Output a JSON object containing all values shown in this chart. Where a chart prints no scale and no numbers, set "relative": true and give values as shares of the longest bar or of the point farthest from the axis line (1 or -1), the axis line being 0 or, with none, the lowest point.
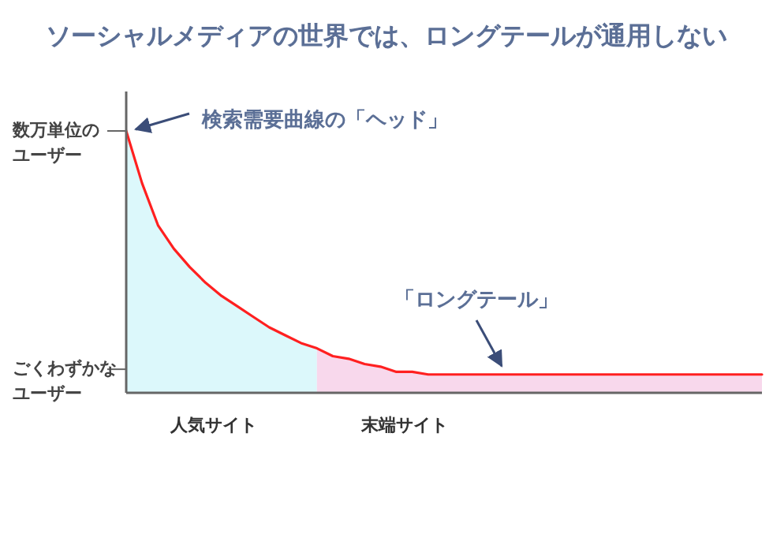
{
  "chart_data": {
    "type": "line",
    "title": "ソーシャルメディアの世界では、ロングテールが通用しない",
    "relative": true,
    "categories": [
      null,
      null,
      null,
      null,
      null,
      null,
      null,
      null,
      null,
      null,
      null,
      null,
      null,
      null,
      null,
      null,
      null,
      null,
      null,
      null,
      null,
      null,
      null,
      null,
      null,
      null,
      null,
      null,
      null,
      null,
      null,
      null,
      null,
      null,
      null,
      null,
      null,
      null,
      null,
      null,
      null
    ],
    "series": [
      {
        "type": "area",
        "name": "人気サイト",
        "color": "#dcf8fb",
        "values": [
          1,
          0.8,
          0.64,
          0.55,
          0.48,
          0.42,
          0.37,
          0.33,
          0.29,
          0.25,
          0.22,
          0.19,
          0.17,
          null,
          null,
          null,
          null,
          null,
          null,
          null,
          null,
          null,
          null,
          null,
          null,
          null,
          null,
          null,
          null,
          null,
          null,
          null,
          null,
          null,
          null,
          null,
          null,
          null,
          null,
          null,
          null
        ]
      },
      {
        "type": "area",
        "name": "末端サイト",
        "color": "#f8d8ec",
        "values": [
          null,
          null,
          null,
          null,
          null,
          null,
          null,
          null,
          null,
          null,
          null,
          null,
          0.17,
          0.14,
          0.13,
          0.11,
          0.1,
          0.08,
          0.08,
          0.07,
          0.07,
          0.07,
          0.07,
          0.07,
          0.07,
          0.07,
          0.07,
          0.07,
          0.07,
          0.07,
          0.07,
          0.07,
          0.07,
          0.07,
          0.07,
          0.07,
          0.07,
          0.07,
          0.07,
          0.07,
          0.07
        ]
      },
      {
        "color": "#ff2020",
        "values": [
          1,
          0.8,
          0.64,
          0.55,
          0.48,
          0.42,
          0.37,
          0.33,
          0.29,
          0.25,
          0.22,
          0.19,
          0.17,
          0.14,
          0.13,
          0.11,
          0.1,
          0.08,
          0.08,
          0.07,
          0.07,
          0.07,
          0.07,
          0.07,
          0.07,
          0.07,
          0.07,
          0.07,
          0.07,
          0.07,
          0.07,
          0.07,
          0.07,
          0.07,
          0.07,
          0.07,
          0.07,
          0.07,
          0.07,
          0.07,
          0.07
        ]
      }
    ],
    "annotations": [
      "数万単位のユーザー",
      "ごくわずかなユーザー",
      "検索需要曲線の「ヘッド」",
      "「ロングテール」"
    ],
    "marker": "none",
    "line_style": "solid"
  }
}
